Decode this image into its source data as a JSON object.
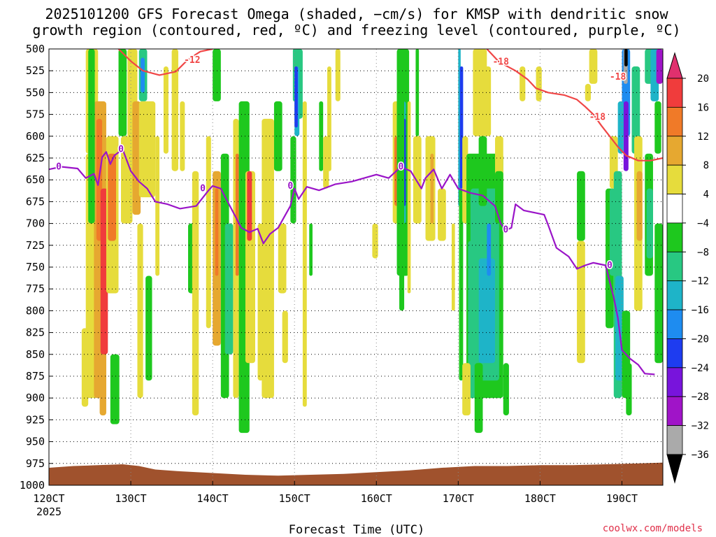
{
  "chart_data": {
    "type": "heatmap",
    "title_line1": "2025101200 GFS Forecast Omega (shaded, −cm/s) for KMSP with dendritic snow",
    "title_line2": "growth region (contoured, red, ºC) and freezing level (contoured, purple, ºC)",
    "xlabel": "Forecast Time (UTC)",
    "credit": "coolwx.com/models",
    "x_ticks": [
      "120CT",
      "130CT",
      "140CT",
      "150CT",
      "160CT",
      "170CT",
      "180CT",
      "190CT"
    ],
    "x_year": "2025",
    "x_range_days": [
      12,
      19.5
    ],
    "y_ticks": [
      "500",
      "525",
      "550",
      "575",
      "600",
      "625",
      "650",
      "675",
      "700",
      "725",
      "750",
      "775",
      "800",
      "825",
      "850",
      "875",
      "900",
      "925",
      "950",
      "975",
      "1000"
    ],
    "y_range_hpa": [
      500,
      1000
    ],
    "colorbar": {
      "ticks": [
        "20",
        "16",
        "12",
        "8",
        "4",
        "−4",
        "−8",
        "−12",
        "−16",
        "−20",
        "−24",
        "−28",
        "−32",
        "−36"
      ],
      "bins": [
        {
          "lo": 16,
          "hi": 20,
          "color": "#f03c3c"
        },
        {
          "lo": 12,
          "hi": 16,
          "color": "#f07a28"
        },
        {
          "lo": 8,
          "hi": 12,
          "color": "#e6a830"
        },
        {
          "lo": 4,
          "hi": 8,
          "color": "#e6dc3c"
        },
        {
          "lo": -4,
          "hi": 4,
          "color": "#ffffff"
        },
        {
          "lo": -8,
          "hi": -4,
          "color": "#1ec81e"
        },
        {
          "lo": -12,
          "hi": -8,
          "color": "#28c882"
        },
        {
          "lo": -16,
          "hi": -12,
          "color": "#1eb4c8"
        },
        {
          "lo": -20,
          "hi": -16,
          "color": "#1e8cf0"
        },
        {
          "lo": -24,
          "hi": -20,
          "color": "#1e3cf0"
        },
        {
          "lo": -28,
          "hi": -24,
          "color": "#7814dc"
        },
        {
          "lo": -32,
          "hi": -28,
          "color": "#a014c8"
        },
        {
          "lo": -36,
          "hi": -32,
          "color": "#aaaaaa"
        }
      ],
      "over_color": "#e0306e",
      "under_color": "#000000"
    },
    "freezing_level": {
      "color": "#9a14c8",
      "label": "0",
      "points": [
        [
          12.0,
          638
        ],
        [
          12.15,
          635
        ],
        [
          12.35,
          637
        ],
        [
          12.45,
          648
        ],
        [
          12.55,
          643
        ],
        [
          12.6,
          656
        ],
        [
          12.65,
          624
        ],
        [
          12.7,
          618
        ],
        [
          12.75,
          632
        ],
        [
          12.8,
          622
        ],
        [
          12.9,
          615
        ],
        [
          13.0,
          640
        ],
        [
          13.1,
          652
        ],
        [
          13.2,
          660
        ],
        [
          13.3,
          675
        ],
        [
          13.45,
          678
        ],
        [
          13.6,
          683
        ],
        [
          13.8,
          680
        ],
        [
          13.95,
          662
        ],
        [
          14.0,
          657
        ],
        [
          14.1,
          660
        ],
        [
          14.2,
          678
        ],
        [
          14.35,
          705
        ],
        [
          14.45,
          710
        ],
        [
          14.55,
          706
        ],
        [
          14.62,
          723
        ],
        [
          14.7,
          712
        ],
        [
          14.8,
          705
        ],
        [
          14.95,
          680
        ],
        [
          15.0,
          660
        ],
        [
          15.05,
          672
        ],
        [
          15.15,
          658
        ],
        [
          15.3,
          662
        ],
        [
          15.5,
          655
        ],
        [
          15.7,
          652
        ],
        [
          15.85,
          648
        ],
        [
          16.0,
          644
        ],
        [
          16.15,
          648
        ],
        [
          16.3,
          635
        ],
        [
          16.42,
          640
        ],
        [
          16.55,
          660
        ],
        [
          16.6,
          648
        ],
        [
          16.7,
          638
        ],
        [
          16.8,
          660
        ],
        [
          16.9,
          644
        ],
        [
          17.0,
          660
        ],
        [
          17.15,
          665
        ],
        [
          17.3,
          668
        ],
        [
          17.45,
          680
        ],
        [
          17.52,
          700
        ],
        [
          17.58,
          708
        ],
        [
          17.65,
          705
        ],
        [
          17.7,
          678
        ],
        [
          17.8,
          685
        ],
        [
          17.95,
          688
        ],
        [
          18.05,
          690
        ],
        [
          18.1,
          702
        ],
        [
          18.2,
          728
        ],
        [
          18.35,
          738
        ],
        [
          18.45,
          752
        ],
        [
          18.55,
          748
        ],
        [
          18.65,
          745
        ],
        [
          18.7,
          746
        ],
        [
          18.8,
          748
        ],
        [
          18.9,
          785
        ],
        [
          18.95,
          808
        ],
        [
          19.0,
          845
        ],
        [
          19.1,
          855
        ],
        [
          19.2,
          862
        ],
        [
          19.28,
          872
        ],
        [
          19.4,
          873
        ]
      ]
    },
    "dgz_minus12": {
      "color": "#f04646",
      "label": "-12",
      "points": [
        [
          12.85,
          500
        ],
        [
          13.0,
          514
        ],
        [
          13.15,
          525
        ],
        [
          13.35,
          530
        ],
        [
          13.55,
          526
        ],
        [
          13.7,
          512
        ],
        [
          13.85,
          503
        ],
        [
          14.0,
          500
        ]
      ]
    },
    "dgz_minus18": {
      "color": "#f04646",
      "label": "-18",
      "points": [
        [
          17.35,
          500
        ],
        [
          17.5,
          515
        ],
        [
          17.7,
          525
        ],
        [
          17.85,
          535
        ],
        [
          17.95,
          545
        ],
        [
          18.1,
          550
        ],
        [
          18.3,
          553
        ],
        [
          18.45,
          558
        ],
        [
          18.55,
          566
        ],
        [
          18.65,
          575
        ],
        [
          18.75,
          588
        ],
        [
          18.85,
          600
        ],
        [
          18.95,
          612
        ],
        [
          19.05,
          622
        ],
        [
          19.2,
          628
        ],
        [
          19.35,
          628
        ],
        [
          19.5,
          625
        ]
      ]
    },
    "surface_color": "#a0522d"
  }
}
